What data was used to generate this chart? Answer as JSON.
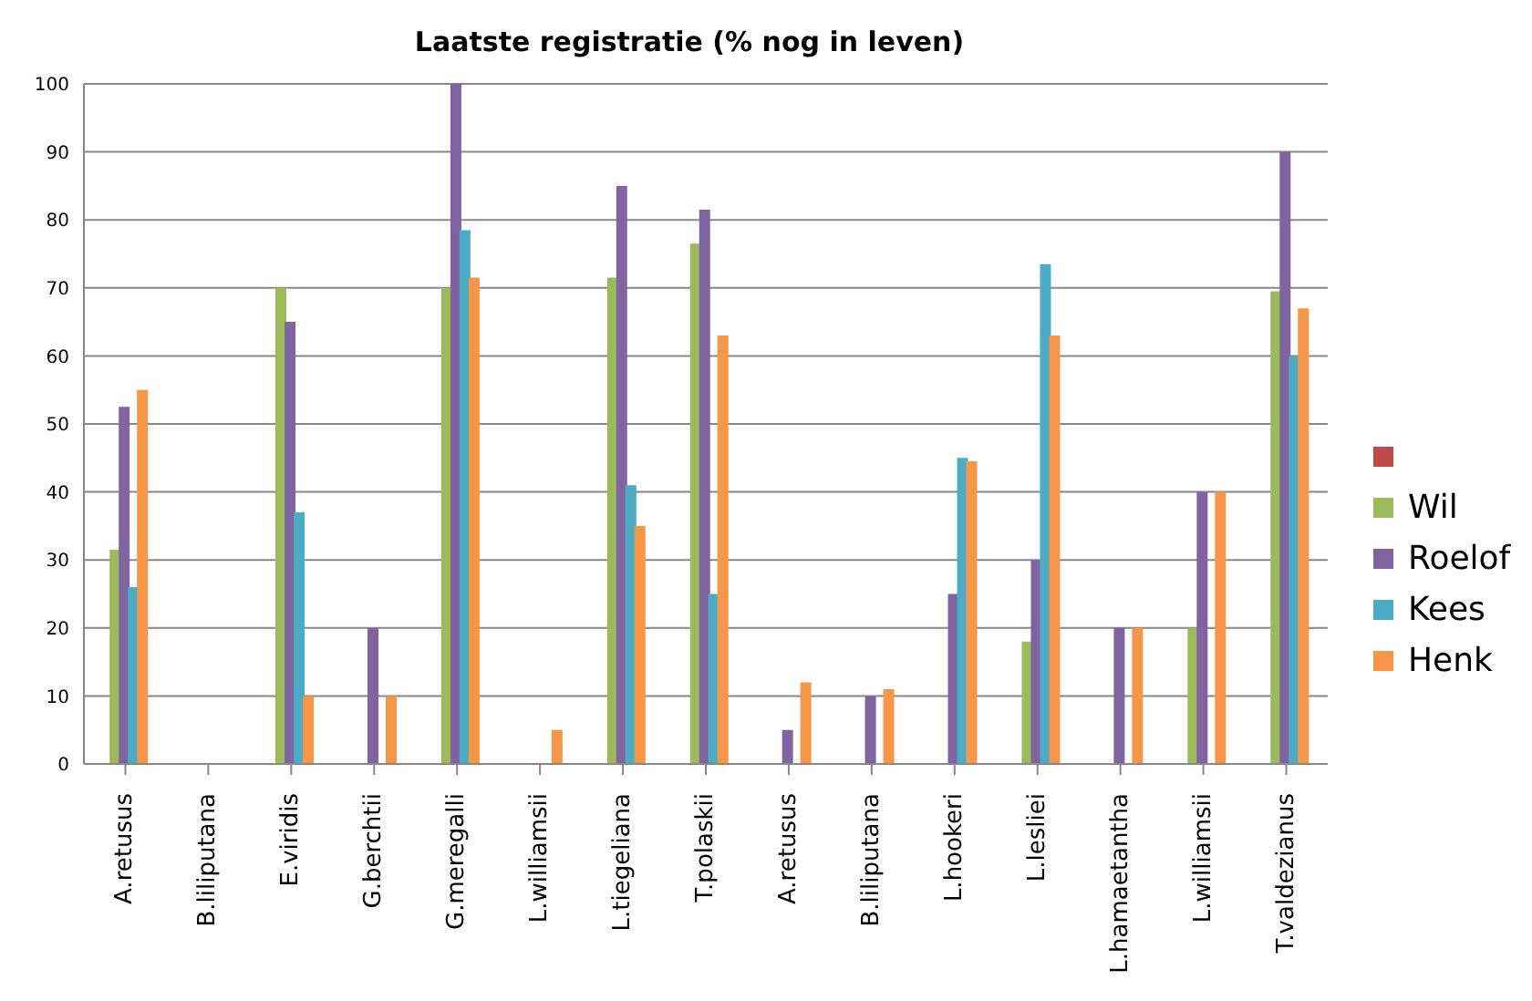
{
  "chart_data": {
    "type": "bar",
    "title": "Laatste  registratie  (% nog in leven)",
    "categories": [
      "A.retusus",
      "B.liliputana",
      "E.viridis",
      "G.berchtii",
      "G.meregalli",
      "L.williamsii",
      "L.tiegeliana",
      "T.polaskii",
      "A.retusus",
      "B.liliputana",
      "L.hookeri",
      "L.lesliei",
      "L.hamaetantha",
      "L.williamsii",
      "T.valdezianus"
    ],
    "series": [
      {
        "color": "#be4b48",
        "values": [
          null,
          null,
          null,
          null,
          null,
          null,
          null,
          null,
          null,
          null,
          null,
          null,
          null,
          null,
          null
        ]
      },
      {
        "name": "Wil",
        "color": "#9bbb59",
        "values": [
          31.5,
          null,
          70,
          null,
          70,
          null,
          71.5,
          76.5,
          null,
          null,
          null,
          18,
          null,
          20,
          69.5
        ]
      },
      {
        "name": "Roelof",
        "color": "#8064a2",
        "values": [
          52.5,
          null,
          65,
          20,
          100,
          null,
          85,
          81.5,
          5,
          10,
          25,
          30,
          20,
          40,
          90
        ]
      },
      {
        "name": "Kees",
        "color": "#4bacc6",
        "values": [
          26,
          null,
          37,
          null,
          78.5,
          null,
          41,
          25,
          null,
          null,
          45,
          73.5,
          null,
          null,
          60
        ]
      },
      {
        "name": "Henk",
        "color": "#f79646",
        "values": [
          55,
          null,
          10,
          10,
          71.5,
          5,
          35,
          63,
          12,
          11,
          44.5,
          63,
          20,
          40,
          67
        ]
      }
    ],
    "ylim": [
      0,
      100
    ],
    "yticks": [
      0,
      10,
      20,
      30,
      40,
      50,
      60,
      70,
      80,
      90,
      100
    ],
    "grid": "y",
    "legend": "right"
  }
}
